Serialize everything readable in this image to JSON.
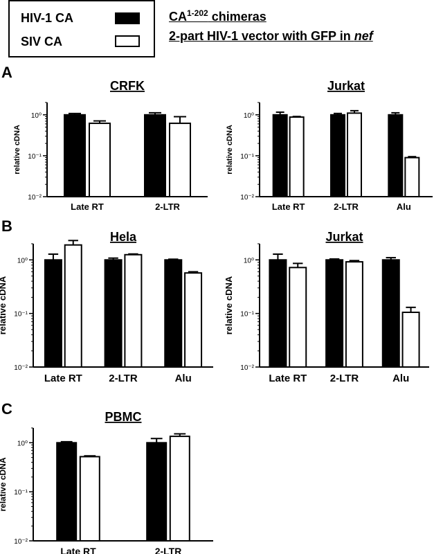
{
  "legend": {
    "items": [
      {
        "label": "HIV-1 CA",
        "color": "#000000"
      },
      {
        "label": "SIV CA",
        "color": "#ffffff"
      }
    ]
  },
  "header": {
    "title_main": "CA",
    "title_sup": "1-202",
    "title_rest": " chimeras",
    "subtitle_pre": "2-part HIV-1 vector with GFP in ",
    "subtitle_em": "nef"
  },
  "panels": [
    {
      "letter": "A"
    },
    {
      "letter": "B"
    },
    {
      "letter": "C"
    }
  ],
  "chart_data": [
    {
      "type": "bar",
      "panel": "A",
      "title": "CRFK",
      "ylabel": "relative cDNA",
      "yscale": "log",
      "ylim": [
        0.01,
        2
      ],
      "yticks": [
        "10⁻²",
        "10⁻¹",
        "10⁰"
      ],
      "categories": [
        "Late RT",
        "2-LTR"
      ],
      "series": [
        {
          "name": "HIV-1 CA",
          "values": [
            1.0,
            1.0
          ],
          "errors": [
            0.08,
            0.12
          ]
        },
        {
          "name": "SIV CA",
          "values": [
            0.62,
            0.62
          ],
          "errors": [
            0.09,
            0.28
          ]
        }
      ]
    },
    {
      "type": "bar",
      "panel": "A",
      "title": "Jurkat",
      "ylabel": "relative cDNA",
      "yscale": "log",
      "ylim": [
        0.01,
        2
      ],
      "yticks": [
        "10⁻²",
        "10⁻¹",
        "10⁰"
      ],
      "categories": [
        "Late RT",
        "2-LTR",
        "Alu"
      ],
      "series": [
        {
          "name": "HIV-1 CA",
          "values": [
            1.0,
            1.0,
            1.0
          ],
          "errors": [
            0.16,
            0.08,
            0.12
          ]
        },
        {
          "name": "SIV CA",
          "values": [
            0.88,
            1.1,
            0.09
          ],
          "errors": [
            0.03,
            0.16,
            0.005
          ]
        }
      ]
    },
    {
      "type": "bar",
      "panel": "B",
      "title": "Hela",
      "ylabel": "relative cDNA",
      "yscale": "log",
      "ylim": [
        0.01,
        2
      ],
      "yticks": [
        "10⁻²",
        "10⁻¹",
        "10⁰"
      ],
      "categories": [
        "Late RT",
        "2-LTR",
        "Alu"
      ],
      "series": [
        {
          "name": "HIV-1 CA",
          "values": [
            1.0,
            1.0,
            1.0
          ],
          "errors": [
            0.28,
            0.08,
            0.03
          ]
        },
        {
          "name": "SIV CA",
          "values": [
            1.9,
            1.25,
            0.57
          ],
          "errors": [
            0.4,
            0.04,
            0.03
          ]
        }
      ]
    },
    {
      "type": "bar",
      "panel": "B",
      "title": "Jurkat",
      "ylabel": "relative cDNA",
      "yscale": "log",
      "ylim": [
        0.01,
        2
      ],
      "yticks": [
        "10⁻²",
        "10⁻¹",
        "10⁰"
      ],
      "categories": [
        "Late RT",
        "2-LTR",
        "Alu"
      ],
      "series": [
        {
          "name": "HIV-1 CA",
          "values": [
            1.0,
            1.0,
            1.0
          ],
          "errors": [
            0.28,
            0.04,
            0.1
          ]
        },
        {
          "name": "SIV CA",
          "values": [
            0.72,
            0.92,
            0.105
          ],
          "errors": [
            0.14,
            0.05,
            0.025
          ]
        }
      ]
    },
    {
      "type": "bar",
      "panel": "C",
      "title": "PBMC",
      "ylabel": "relative cDNA",
      "yscale": "log",
      "ylim": [
        0.01,
        2
      ],
      "yticks": [
        "10⁻²",
        "10⁻¹",
        "10⁰"
      ],
      "categories": [
        "Late RT",
        "2-LTR"
      ],
      "series": [
        {
          "name": "HIV-1 CA",
          "values": [
            1.0,
            1.0
          ],
          "errors": [
            0.05,
            0.22
          ]
        },
        {
          "name": "SIV CA",
          "values": [
            0.52,
            1.35
          ],
          "errors": [
            0.02,
            0.17
          ]
        }
      ]
    }
  ]
}
